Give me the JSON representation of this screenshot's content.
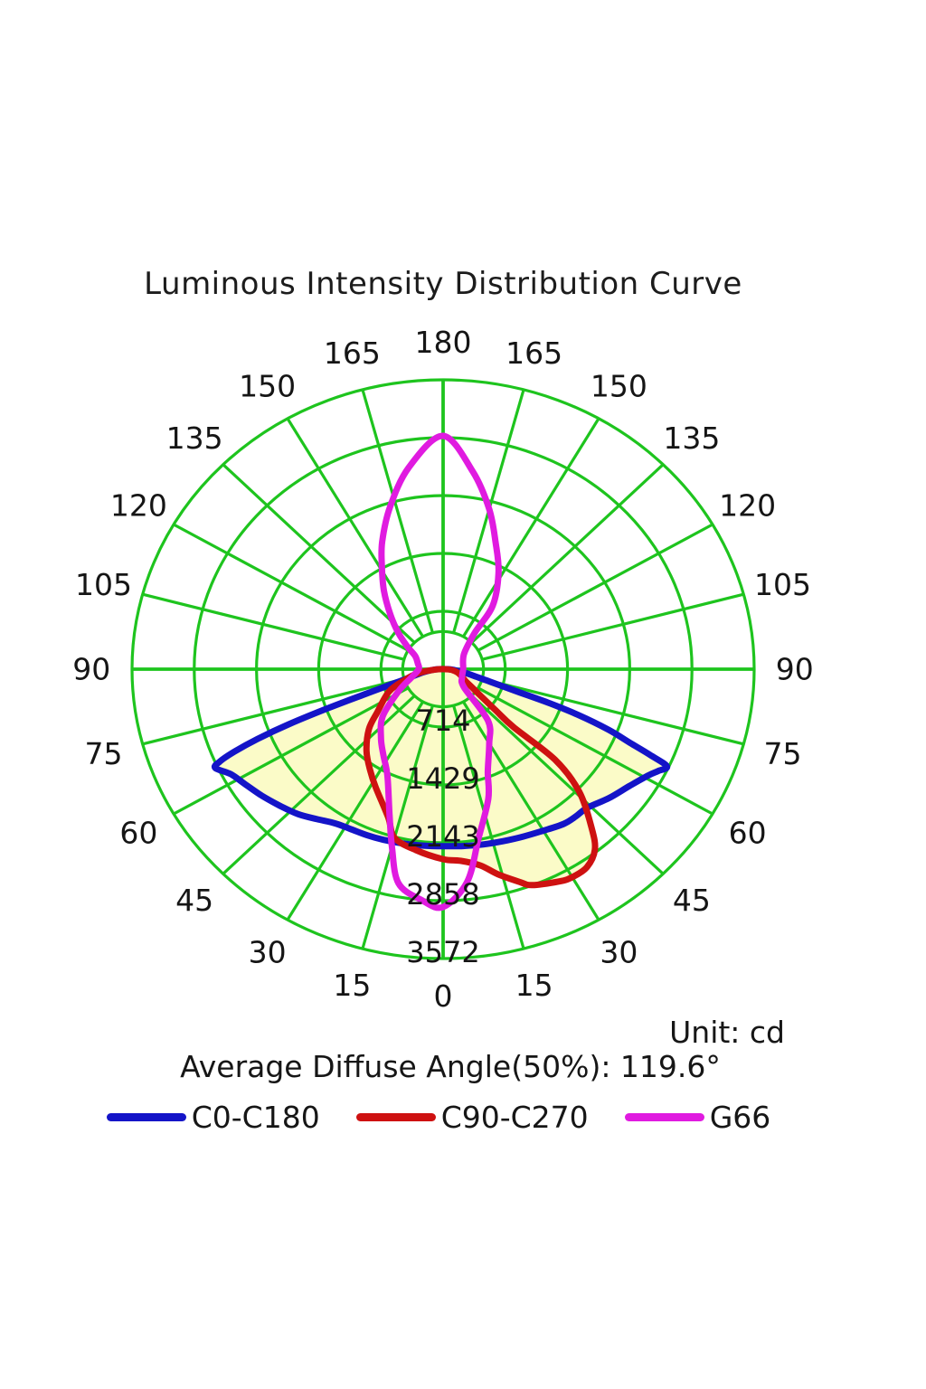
{
  "page": {
    "title": "Luminous Intensity Distribution Curve",
    "unit_label": "Unit: cd",
    "average_label": "Average Diffuse Angle(50%): 119.6°"
  },
  "chart_data": {
    "type": "line",
    "polar": true,
    "title": "Luminous Intensity Distribution Curve",
    "unit": "cd",
    "average_diffuse_angle_50pct_deg": 119.6,
    "r_max_cd": 3572,
    "radial_ticks_cd": [
      714,
      1429,
      2143,
      2858,
      3572
    ],
    "angle_tick_step_deg": 15,
    "angle_labels_deg": [
      0,
      15,
      30,
      45,
      60,
      75,
      90,
      105,
      120,
      135,
      150,
      165,
      180
    ],
    "hub_radius_frac": 0.13,
    "label_radius_frac": 1.13,
    "grid_color": "#1ec41e",
    "fill_color": "#fbfbc8",
    "label_color": "#151515",
    "legend_position": "bottom",
    "series": [
      {
        "name": "C0-C180",
        "color": "#1414c8",
        "filled": true,
        "closed": true,
        "points": [
          [
            -90,
            60
          ],
          [
            -85,
            130
          ],
          [
            -80,
            240
          ],
          [
            -76,
            360
          ],
          [
            -73,
            560
          ],
          [
            -71,
            950
          ],
          [
            -70,
            1400
          ],
          [
            -69,
            1900
          ],
          [
            -68,
            2300
          ],
          [
            -67,
            2600
          ],
          [
            -66,
            2810
          ],
          [
            -65,
            2886
          ],
          [
            -62,
            2760
          ],
          [
            -58,
            2680
          ],
          [
            -53,
            2600
          ],
          [
            -48,
            2520
          ],
          [
            -43,
            2445
          ],
          [
            -38,
            2350
          ],
          [
            -33,
            2270
          ],
          [
            -28,
            2240
          ],
          [
            -23,
            2228
          ],
          [
            -18,
            2215
          ],
          [
            -12,
            2200
          ],
          [
            -6,
            2190
          ],
          [
            0,
            2185
          ],
          [
            6,
            2195
          ],
          [
            12,
            2212
          ],
          [
            18,
            2232
          ],
          [
            24,
            2262
          ],
          [
            30,
            2302
          ],
          [
            36,
            2360
          ],
          [
            40,
            2372
          ],
          [
            44,
            2380
          ],
          [
            50,
            2480
          ],
          [
            56,
            2580
          ],
          [
            61,
            2700
          ],
          [
            63,
            2770
          ],
          [
            65,
            2836
          ],
          [
            66,
            2600
          ],
          [
            67,
            2340
          ],
          [
            68.5,
            2043
          ],
          [
            70,
            1650
          ],
          [
            71,
            1300
          ],
          [
            72,
            900
          ],
          [
            74,
            560
          ],
          [
            77,
            360
          ],
          [
            81,
            230
          ],
          [
            85,
            130
          ],
          [
            90,
            60
          ]
        ]
      },
      {
        "name": "C90-C270",
        "color": "#ce1111",
        "filled": true,
        "closed": true,
        "points": [
          [
            88,
            60
          ],
          [
            80,
            140
          ],
          [
            72,
            200
          ],
          [
            65,
            250
          ],
          [
            60,
            300
          ],
          [
            56,
            400
          ],
          [
            53,
            520
          ],
          [
            50,
            780
          ],
          [
            48.5,
            1080
          ],
          [
            49,
            1700
          ],
          [
            46,
            2170
          ],
          [
            41,
            2600
          ],
          [
            38,
            2830
          ],
          [
            34,
            2950
          ],
          [
            30,
            2965
          ],
          [
            27,
            2940
          ],
          [
            21,
            2855
          ],
          [
            18.5,
            2770
          ],
          [
            14,
            2610
          ],
          [
            10,
            2460
          ],
          [
            5,
            2375
          ],
          [
            0,
            2345
          ],
          [
            -8,
            2255
          ],
          [
            -15,
            2155
          ],
          [
            -19,
            1935
          ],
          [
            -28,
            1650
          ],
          [
            -34,
            1500
          ],
          [
            -41,
            1340
          ],
          [
            -49,
            1130
          ],
          [
            -55,
            920
          ],
          [
            -66,
            680
          ],
          [
            -73,
            465
          ],
          [
            -80,
            300
          ],
          [
            -88,
            80
          ]
        ]
      },
      {
        "name": "G66",
        "color": "#e01be0",
        "filled": false,
        "closed": true,
        "points": [
          [
            180,
            2880
          ],
          [
            -171,
            2520
          ],
          [
            -163,
            2090
          ],
          [
            -156,
            1720
          ],
          [
            -151,
            1450
          ],
          [
            -145,
            1185
          ],
          [
            -138,
            905
          ],
          [
            -131,
            680
          ],
          [
            -124,
            490
          ],
          [
            -117,
            360
          ],
          [
            -104,
            300
          ],
          [
            -90,
            280
          ],
          [
            -74,
            380
          ],
          [
            -62,
            580
          ],
          [
            -50,
            905
          ],
          [
            -40,
            1110
          ],
          [
            -33,
            1260
          ],
          [
            -26,
            1460
          ],
          [
            -19,
            1890
          ],
          [
            -15,
            2270
          ],
          [
            -11,
            2690
          ],
          [
            -5,
            2860
          ],
          [
            0,
            2936
          ],
          [
            6,
            2640
          ],
          [
            11,
            2130
          ],
          [
            18,
            1680
          ],
          [
            22,
            1370
          ],
          [
            30,
            1060
          ],
          [
            39,
            820
          ],
          [
            47,
            330
          ],
          [
            65,
            240
          ],
          [
            90,
            230
          ],
          [
            128,
            305
          ],
          [
            141,
            575
          ],
          [
            144,
            970
          ],
          [
            152,
            1355
          ],
          [
            159,
            1680
          ],
          [
            165,
            2045
          ],
          [
            172,
            2460
          ]
        ]
      }
    ]
  }
}
